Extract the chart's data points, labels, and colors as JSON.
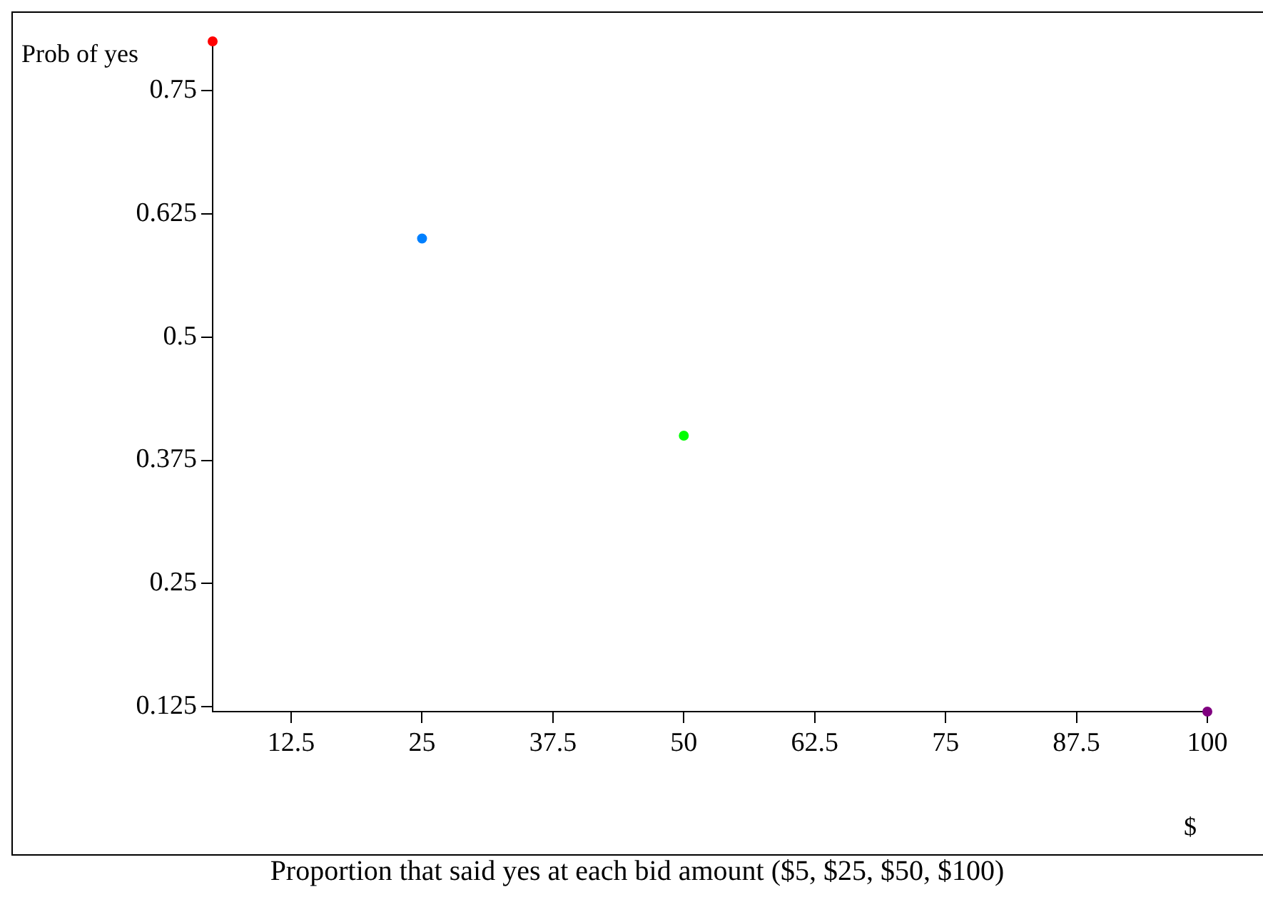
{
  "chart_data": {
    "type": "scatter",
    "title": "Proportion that said yes at each bid amount ($5, $25, $50, $100)",
    "xlabel": "$",
    "ylabel": "Prob of yes",
    "x": [
      5,
      25,
      50,
      100
    ],
    "values": [
      0.8,
      0.6,
      0.4,
      0.12
    ],
    "colors": [
      "#ff0000",
      "#0080ff",
      "#00ff00",
      "#800080"
    ],
    "xlim": [
      5,
      100
    ],
    "xticks": [
      12.5,
      25,
      37.5,
      50,
      62.5,
      75,
      87.5,
      100
    ],
    "ylim": [
      0.12,
      0.8
    ],
    "yticks": [
      0.125,
      0.25,
      0.375,
      0.5,
      0.625,
      0.75
    ],
    "grid": false,
    "legend": false,
    "marker": "circle"
  }
}
